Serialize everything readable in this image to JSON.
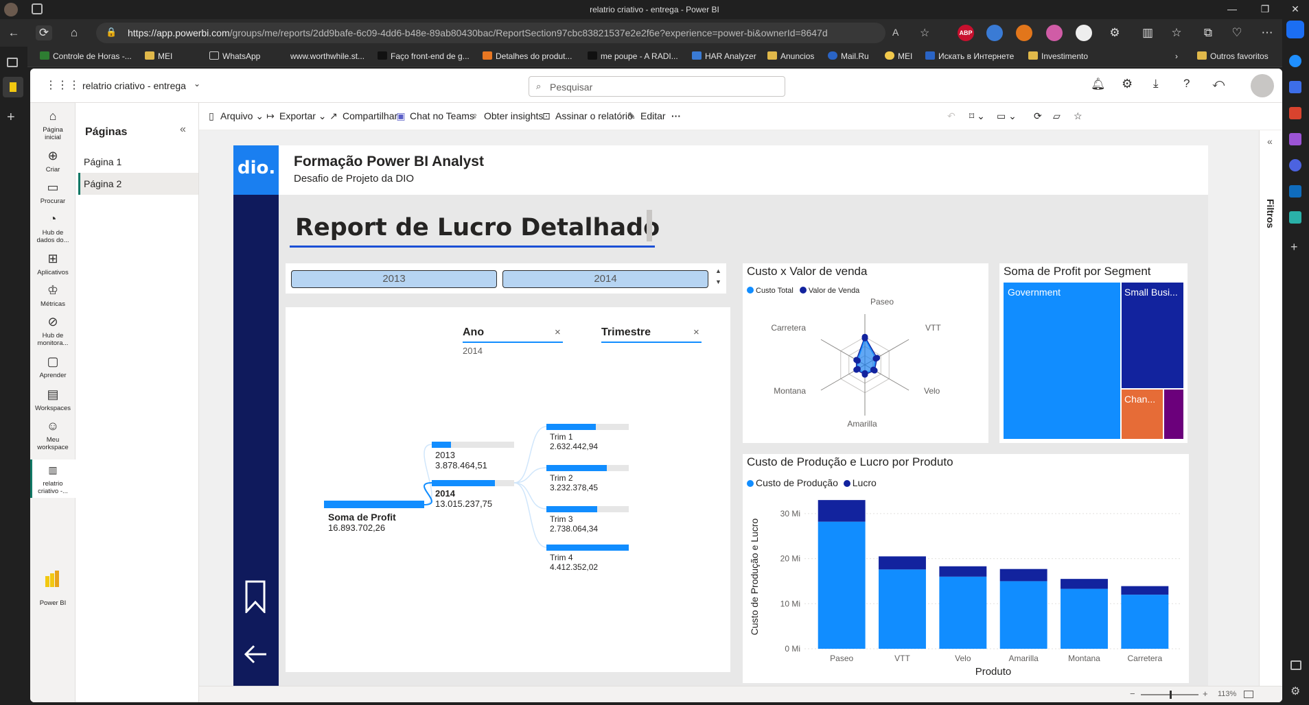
{
  "browser": {
    "window_title": "relatrio criativo - entrega - Power BI",
    "url_host": "https://app.powerbi.com",
    "url_rest": "/groups/me/reports/2dd9bafe-6c09-4dd6-b48e-89ab80430bac/ReportSection97cbc83821537e2e2f6e?experience=power-bi&ownerId=8647d4d1-04d0...",
    "bookmarks": [
      "Controle de Horas -...",
      "MEI",
      "WhatsApp",
      "www.worthwhile.st...",
      "Faço front-end de g...",
      "Detalhes do produt...",
      "me poupe - A RADI...",
      "HAR Analyzer",
      "Anuncios",
      "Mail.Ru",
      "MEI",
      "Искать в Интернете",
      "Investimento",
      "Outros favoritos"
    ],
    "extensions": [
      "ABP"
    ]
  },
  "app": {
    "report_name": "relatrio criativo - entrega",
    "search_placeholder": "Pesquisar",
    "brand_label": "Power BI"
  },
  "rail": [
    {
      "label1": "Página",
      "label2": "inicial",
      "icon": "home-icon"
    },
    {
      "label1": "Criar",
      "label2": "",
      "icon": "plus-circle-icon"
    },
    {
      "label1": "Procurar",
      "label2": "",
      "icon": "folder-icon"
    },
    {
      "label1": "Hub de",
      "label2": "dados do...",
      "icon": "data-hub-icon"
    },
    {
      "label1": "Aplicativos",
      "label2": "",
      "icon": "apps-icon"
    },
    {
      "label1": "Métricas",
      "label2": "",
      "icon": "trophy-icon"
    },
    {
      "label1": "Hub de",
      "label2": "monitora...",
      "icon": "monitor-hub-icon"
    },
    {
      "label1": "Aprender",
      "label2": "",
      "icon": "book-icon"
    },
    {
      "label1": "Workspaces",
      "label2": "",
      "icon": "workspaces-icon"
    },
    {
      "label1": "Meu",
      "label2": "workspace",
      "icon": "user-icon"
    },
    {
      "label1": "relatrio",
      "label2": "criativo -...",
      "icon": "report-icon"
    }
  ],
  "pages_pane": {
    "title": "Páginas",
    "pages": [
      "Página 1",
      "Página 2"
    ],
    "active": "Página 2"
  },
  "toolbar": {
    "arquivo": "Arquivo",
    "exportar": "Exportar",
    "compartilhar": "Compartilhar",
    "chat": "Chat no Teams",
    "insights": "Obter insights",
    "assinar": "Assinar o relatório",
    "editar": "Editar",
    "more": "···"
  },
  "filters_label": "Filtros",
  "zoom": "113%",
  "report": {
    "header_title": "Formação Power BI Analyst",
    "header_subtitle": "Desafio de Projeto da DIO",
    "logo_text": "dio.",
    "page_title": "Report de Lucro Detalhado",
    "slicer_years": [
      "2013",
      "2014"
    ],
    "decomp": {
      "col1_title": "Ano",
      "col1_value": "2014",
      "col2_title": "Trimestre",
      "root_label": "Soma de Profit",
      "root_value": "16.893.702,26",
      "years": [
        {
          "label": "2013",
          "value": "3.878.464,51",
          "fraction": 0.23
        },
        {
          "label": "2014",
          "value": "13.015.237,75",
          "fraction": 0.77
        }
      ],
      "quarters": [
        {
          "label": "Trim 1",
          "value": "2.632.442,94",
          "fraction": 0.6
        },
        {
          "label": "Trim 2",
          "value": "3.232.378,45",
          "fraction": 0.73
        },
        {
          "label": "Trim 3",
          "value": "2.738.064,34",
          "fraction": 0.62
        },
        {
          "label": "Trim 4",
          "value": "4.412.352,02",
          "fraction": 1.0
        }
      ]
    },
    "radar": {
      "title": "Custo x Valor de venda",
      "legend": [
        "Custo Total",
        "Valor de Venda"
      ],
      "axes": [
        "Paseo",
        "VTT",
        "Velo",
        "Amarilla",
        "Montana",
        "Carretera"
      ],
      "series_custo": [
        0.95,
        0.45,
        0.35,
        0.3,
        0.3,
        0.3
      ],
      "series_valor": [
        1.0,
        0.5,
        0.4,
        0.35,
        0.35,
        0.35
      ]
    },
    "treemap": {
      "title": "Soma de Profit por Segment",
      "labels": [
        "Government",
        "Small Busi...",
        "Chan..."
      ]
    },
    "chart_data": {
      "type": "bar",
      "title": "Custo de Produção e Lucro por Produto",
      "categories": [
        "Paseo",
        "VTT",
        "Velo",
        "Amarilla",
        "Montana",
        "Carretera"
      ],
      "series": [
        {
          "name": "Custo de Produção",
          "values": [
            28.2,
            17.6,
            16.0,
            15.0,
            13.3,
            12.0
          ]
        },
        {
          "name": "Lucro",
          "values": [
            4.8,
            2.9,
            2.3,
            2.7,
            2.2,
            1.9
          ]
        }
      ],
      "xlabel": "Produto",
      "ylabel": "Custo de Produção e Lucro",
      "yticks": [
        "0 Mi",
        "10 Mi",
        "20 Mi",
        "30 Mi"
      ],
      "ylim": [
        0,
        35
      ],
      "colors": {
        "custo": "#118DFF",
        "lucro": "#12239E"
      }
    }
  }
}
